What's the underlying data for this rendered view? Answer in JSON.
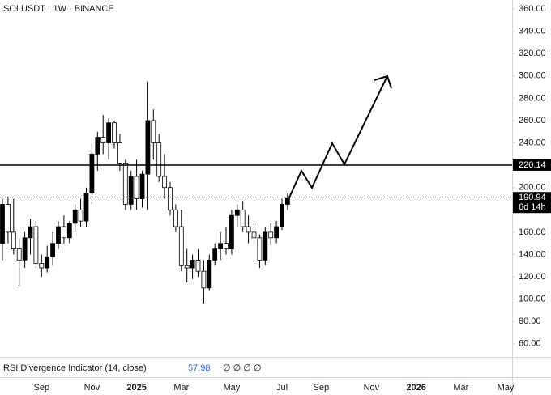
{
  "chart_data": {
    "type": "candlestick",
    "title": "SOLUSDT · 1W · BINANCE",
    "categories": [
      null,
      null,
      null,
      null,
      null,
      null,
      null,
      "Sep",
      null,
      null,
      null,
      null,
      null,
      null,
      null,
      null,
      "Nov",
      null,
      null,
      null,
      null,
      null,
      null,
      null,
      "2025",
      null,
      null,
      null,
      null,
      null,
      null,
      null,
      "Mar",
      null,
      null,
      null,
      null,
      null,
      null,
      null,
      null,
      "May",
      null,
      null,
      null,
      null,
      null,
      null,
      null,
      null,
      "Jul",
      null,
      null,
      null,
      null,
      null,
      null,
      "Sep",
      null,
      null,
      null,
      null,
      null,
      null,
      null,
      null,
      "Nov",
      null,
      null,
      null,
      null,
      null,
      null,
      null,
      "2026",
      null,
      null,
      null,
      null,
      null,
      null,
      null,
      "Mar",
      null,
      null,
      null,
      null,
      null,
      null,
      null,
      "May"
    ],
    "open": [
      150,
      185,
      160,
      145,
      135,
      155,
      165,
      132,
      128,
      138,
      150,
      165,
      155,
      168,
      180,
      170,
      195,
      230,
      245,
      240,
      258,
      240,
      222,
      185,
      210,
      190,
      212,
      260,
      240,
      210,
      200,
      180,
      165,
      130,
      128,
      135,
      125,
      110,
      135,
      145,
      150,
      145,
      175,
      180,
      165,
      160,
      155,
      135,
      160,
      155,
      165,
      185,
      null,
      null,
      null,
      null,
      null,
      null,
      null,
      null,
      null,
      null,
      null,
      null,
      null,
      null,
      null,
      null,
      null,
      null,
      null,
      null,
      null,
      null,
      null,
      null,
      null,
      null,
      null,
      null,
      null,
      null,
      null,
      null,
      null,
      null,
      null,
      null,
      null,
      null,
      null
    ],
    "high": [
      190,
      192,
      190,
      155,
      160,
      172,
      170,
      140,
      148,
      160,
      170,
      175,
      170,
      185,
      190,
      200,
      240,
      250,
      265,
      262,
      260,
      248,
      225,
      215,
      225,
      215,
      295,
      270,
      248,
      230,
      205,
      185,
      180,
      145,
      140,
      145,
      135,
      140,
      150,
      160,
      165,
      180,
      185,
      188,
      175,
      170,
      158,
      165,
      168,
      170,
      190,
      195,
      null,
      null,
      null,
      null,
      null,
      null,
      null,
      null,
      null,
      null,
      null,
      null,
      null,
      null,
      null,
      null,
      null,
      null,
      null,
      null,
      null,
      null,
      null,
      null,
      null,
      null,
      null,
      null,
      null,
      null,
      null,
      null,
      null,
      null,
      null,
      null,
      null,
      null,
      null
    ],
    "low": [
      135,
      150,
      140,
      112,
      128,
      140,
      128,
      120,
      124,
      130,
      145,
      150,
      150,
      160,
      165,
      165,
      185,
      215,
      230,
      225,
      235,
      215,
      180,
      180,
      180,
      182,
      180,
      225,
      205,
      190,
      175,
      160,
      125,
      115,
      118,
      120,
      96,
      108,
      130,
      135,
      140,
      140,
      165,
      160,
      150,
      148,
      128,
      130,
      148,
      150,
      162,
      180,
      null,
      null,
      null,
      null,
      null,
      null,
      null,
      null,
      null,
      null,
      null,
      null,
      null,
      null,
      null,
      null,
      null,
      null,
      null,
      null,
      null,
      null,
      null,
      null,
      null,
      null,
      null,
      null,
      null,
      null,
      null,
      null,
      null,
      null,
      null,
      null,
      null,
      null,
      null
    ],
    "close": [
      185,
      160,
      145,
      135,
      155,
      165,
      132,
      128,
      138,
      150,
      165,
      155,
      168,
      180,
      170,
      195,
      230,
      245,
      240,
      258,
      240,
      222,
      185,
      210,
      190,
      212,
      260,
      240,
      210,
      200,
      180,
      165,
      130,
      128,
      135,
      125,
      110,
      135,
      145,
      150,
      145,
      175,
      180,
      165,
      160,
      155,
      135,
      160,
      155,
      165,
      185,
      190.94,
      null,
      null,
      null,
      null,
      null,
      null,
      null,
      null,
      null,
      null,
      null,
      null,
      null,
      null,
      null,
      null,
      null,
      null,
      null,
      null,
      null,
      null,
      null,
      null,
      null,
      null,
      null,
      null,
      null,
      null,
      null,
      null,
      null,
      null,
      null,
      null,
      null,
      null,
      null
    ],
    "up_color": "#000000",
    "down_color": "#ffffff",
    "ylim": [
      49,
      368
    ],
    "yticks": [
      {
        "value": 60,
        "label": "60.00"
      },
      {
        "value": 80,
        "label": "80.00"
      },
      {
        "value": 100,
        "label": "100.00"
      },
      {
        "value": 120,
        "label": "120.00"
      },
      {
        "value": 140,
        "label": "140.00"
      },
      {
        "value": 160,
        "label": "160.00"
      },
      {
        "value": 180,
        "label": "180.00"
      },
      {
        "value": 200,
        "label": "200.00"
      },
      {
        "value": 220,
        "label": "220.00"
      },
      {
        "value": 240,
        "label": "240.00"
      },
      {
        "value": 260,
        "label": "260.00"
      },
      {
        "value": 280,
        "label": "280.00"
      },
      {
        "value": 300,
        "label": "300.00"
      },
      {
        "value": 320,
        "label": "320.00"
      },
      {
        "value": 340,
        "label": "340.00"
      },
      {
        "value": 360,
        "label": "360.00"
      }
    ],
    "hline": 220.14,
    "last_price": 190.94,
    "countdown": "6d 14h",
    "indicator": {
      "name": "RSI Divergence Indicator (14, close)",
      "value": 57.98,
      "symbols": "∅ ∅ ∅ ∅",
      "color": "#2962ff"
    }
  }
}
